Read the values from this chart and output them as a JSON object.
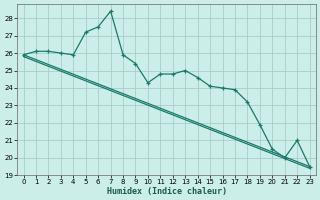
{
  "xlabel": "Humidex (Indice chaleur)",
  "background_color": "#cceee8",
  "grid_color": "#aacccc",
  "line_color": "#1a7a6a",
  "xlim": [
    -0.5,
    23.5
  ],
  "ylim": [
    19,
    28.8
  ],
  "yticks": [
    19,
    20,
    21,
    22,
    23,
    24,
    25,
    26,
    27,
    28
  ],
  "xticks": [
    0,
    1,
    2,
    3,
    4,
    5,
    6,
    7,
    8,
    9,
    10,
    11,
    12,
    13,
    14,
    15,
    16,
    17,
    18,
    19,
    20,
    21,
    22,
    23
  ],
  "series1_x": [
    0,
    1,
    2,
    3,
    4,
    5,
    6,
    7,
    8,
    9,
    10,
    11,
    12,
    13,
    14,
    15,
    16,
    17,
    18,
    19,
    20,
    21,
    22,
    23
  ],
  "series1_y": [
    25.9,
    26.1,
    26.1,
    26.0,
    25.9,
    27.2,
    27.5,
    28.4,
    25.9,
    25.4,
    24.3,
    24.8,
    24.8,
    25.0,
    24.6,
    24.1,
    24.0,
    23.9,
    23.2,
    21.9,
    20.5,
    20.0,
    21.0,
    19.5
  ],
  "trend1_x": [
    0,
    23
  ],
  "trend1_y": [
    25.9,
    19.5
  ],
  "trend2_x": [
    0,
    23
  ],
  "trend2_y": [
    25.8,
    19.4
  ]
}
